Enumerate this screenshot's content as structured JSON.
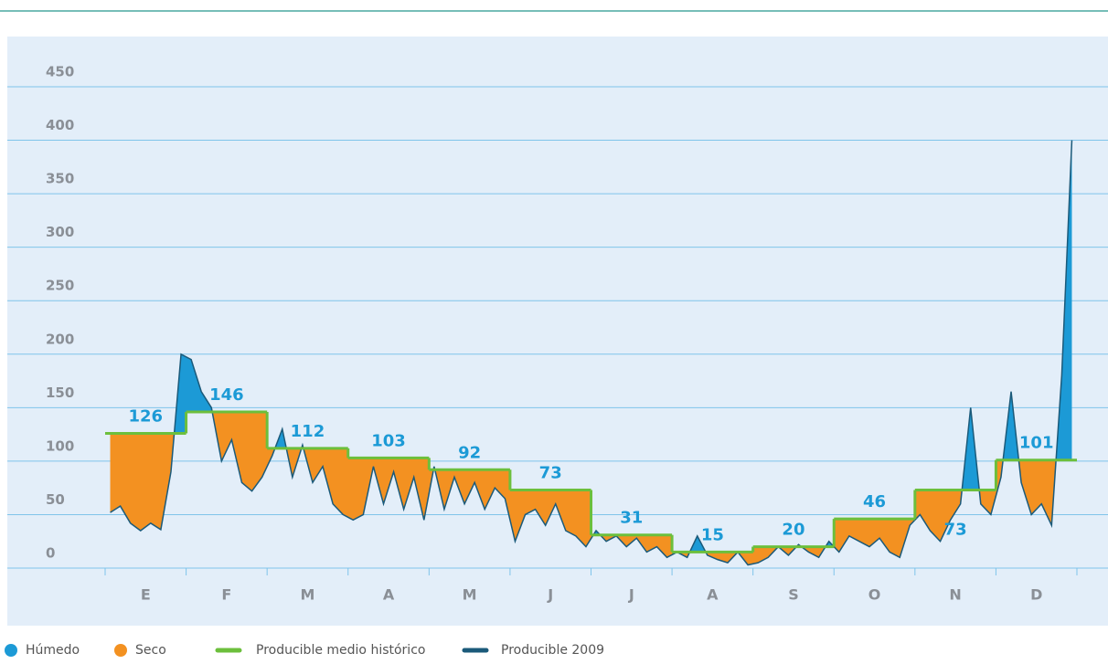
{
  "chart_data": {
    "type": "step-difference",
    "categories": [
      "E",
      "F",
      "M",
      "A",
      "M",
      "J",
      "J",
      "A",
      "S",
      "O",
      "N",
      "D"
    ],
    "ylim": [
      0,
      450
    ],
    "yticks": [
      0,
      50,
      100,
      150,
      200,
      250,
      300,
      350,
      400,
      450
    ],
    "xlim": [
      0,
      12
    ],
    "grid": true,
    "series": [
      {
        "name": "Producible medio histórico",
        "color": "#6cbf3c",
        "values": [
          126,
          146,
          112,
          103,
          92,
          73,
          31,
          15,
          20,
          46,
          73,
          101
        ]
      },
      {
        "name": "Producible 2009",
        "color": "#1b5a7a",
        "x": [
          0.0625,
          0.1875,
          0.3125,
          0.4375,
          0.5625,
          0.6875,
          0.8125,
          0.9375,
          1.0625,
          1.1875,
          1.3125,
          1.4375,
          1.5625,
          1.6875,
          1.8125,
          1.9375,
          2.0625,
          2.1875,
          2.3125,
          2.4375,
          2.5625,
          2.6875,
          2.8125,
          2.9375,
          3.0625,
          3.1875,
          3.3125,
          3.4375,
          3.5625,
          3.6875,
          3.8125,
          3.9375,
          4.0625,
          4.1875,
          4.3125,
          4.4375,
          4.5625,
          4.6875,
          4.8125,
          4.9375,
          5.0625,
          5.1875,
          5.3125,
          5.4375,
          5.5625,
          5.6875,
          5.8125,
          5.9375,
          6.0625,
          6.1875,
          6.3125,
          6.4375,
          6.5625,
          6.6875,
          6.8125,
          6.9375,
          7.0625,
          7.1875,
          7.3125,
          7.4375,
          7.5625,
          7.6875,
          7.8125,
          7.9375,
          8.0625,
          8.1875,
          8.3125,
          8.4375,
          8.5625,
          8.6875,
          8.8125,
          8.9375,
          9.0625,
          9.1875,
          9.3125,
          9.4375,
          9.5625,
          9.6875,
          9.8125,
          9.9375,
          10.0625,
          10.1875,
          10.3125,
          10.4375,
          10.5625,
          10.6875,
          10.8125,
          10.9375,
          11.0625,
          11.1875,
          11.3125,
          11.4375,
          11.5625,
          11.6875,
          11.8125,
          11.9375
        ],
        "values": [
          52,
          58,
          42,
          35,
          42,
          36,
          90,
          200,
          195,
          165,
          150,
          100,
          120,
          80,
          72,
          85,
          105,
          130,
          85,
          115,
          80,
          95,
          60,
          50,
          45,
          50,
          95,
          60,
          90,
          55,
          85,
          45,
          95,
          55,
          85,
          60,
          80,
          55,
          75,
          65,
          25,
          50,
          55,
          40,
          60,
          35,
          30,
          20,
          35,
          25,
          30,
          20,
          28,
          15,
          20,
          10,
          15,
          10,
          30,
          12,
          8,
          5,
          15,
          3,
          5,
          10,
          20,
          12,
          22,
          15,
          10,
          25,
          15,
          30,
          25,
          20,
          28,
          15,
          10,
          40,
          50,
          35,
          25,
          45,
          60,
          150,
          60,
          50,
          85,
          165,
          80,
          50,
          60,
          40,
          180,
          400
        ]
      }
    ],
    "fills": [
      {
        "name": "Húmedo",
        "color": "#1c9ad6"
      },
      {
        "name": "Seco",
        "color": "#f39121"
      }
    ]
  }
}
